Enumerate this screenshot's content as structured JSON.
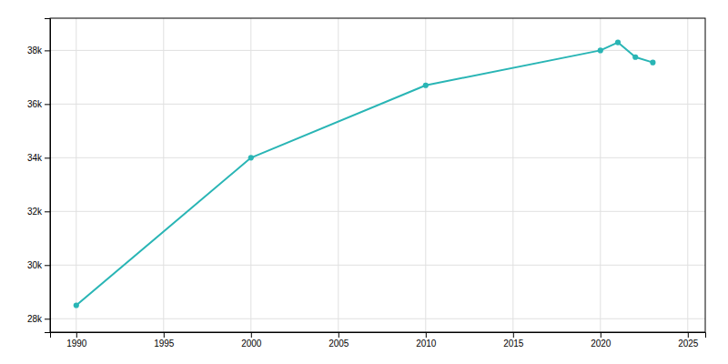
{
  "chart_data": {
    "type": "line",
    "x": [
      1990,
      2000,
      2010,
      2020,
      2021,
      2022,
      2023
    ],
    "values": [
      28500,
      34000,
      36700,
      38000,
      38300,
      37750,
      37550
    ],
    "color": "#29b5b5",
    "marker": "circle",
    "xlim": [
      1988.5,
      2026
    ],
    "ylim": [
      27500,
      39200
    ],
    "xticks": [
      1990,
      1995,
      2000,
      2005,
      2010,
      2015,
      2020,
      2025
    ],
    "yticks": [
      {
        "value": 28000,
        "label": "28k"
      },
      {
        "value": 30000,
        "label": "30k"
      },
      {
        "value": 32000,
        "label": "32k"
      },
      {
        "value": 34000,
        "label": "34k"
      },
      {
        "value": 36000,
        "label": "36k"
      },
      {
        "value": 38000,
        "label": "38k"
      }
    ],
    "grid": true
  }
}
